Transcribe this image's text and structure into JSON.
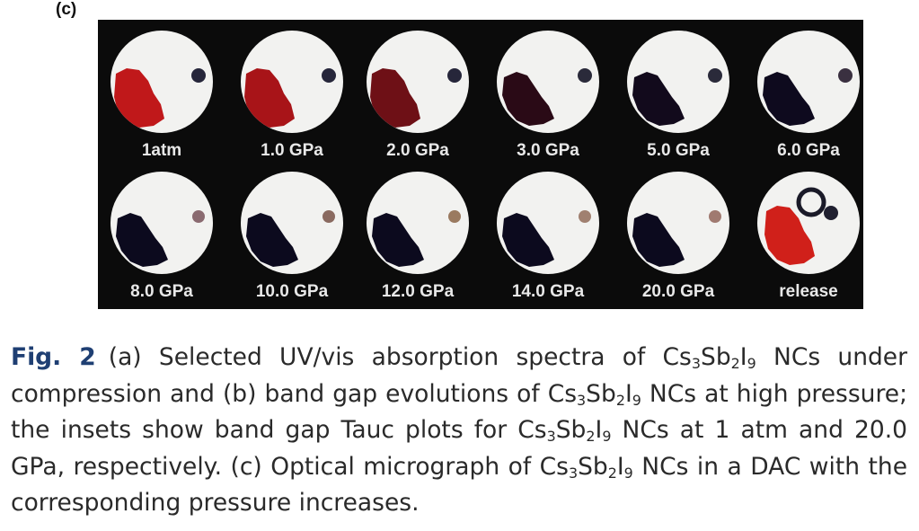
{
  "panel_label": "(c)",
  "micrographs": [
    {
      "label": "1atm",
      "crystal": "#c0181a",
      "dot": "#26263a",
      "stage": 0
    },
    {
      "label": "1.0 GPa",
      "crystal": "#a81418",
      "dot": "#26263a",
      "stage": 1
    },
    {
      "label": "2.0 GPa",
      "crystal": "#6e1016",
      "dot": "#26263a",
      "stage": 2
    },
    {
      "label": "3.0 GPa",
      "crystal": "#2a0a16",
      "dot": "#2a2a3a",
      "stage": 3
    },
    {
      "label": "5.0 GPa",
      "crystal": "#120a1c",
      "dot": "#2a2a3a",
      "stage": 4
    },
    {
      "label": "6.0 GPa",
      "crystal": "#0e0a1e",
      "dot": "#3a3040",
      "stage": 5
    },
    {
      "label": "8.0 GPa",
      "crystal": "#0c0a1e",
      "dot": "#8a6a70",
      "stage": 6
    },
    {
      "label": "10.0 GPa",
      "crystal": "#0c0a1e",
      "dot": "#8a6a60",
      "stage": 7
    },
    {
      "label": "12.0 GPa",
      "crystal": "#0c0a1e",
      "dot": "#9a7a60",
      "stage": 8
    },
    {
      "label": "14.0 GPa",
      "crystal": "#0c0a1e",
      "dot": "#a08070",
      "stage": 9
    },
    {
      "label": "20.0 GPa",
      "crystal": "#0c0a1e",
      "dot": "#a07a70",
      "stage": 10
    },
    {
      "label": "release",
      "crystal": "#d0201a",
      "dot": "#202030",
      "stage": 11
    }
  ],
  "caption": {
    "fig_label": "Fig. 2",
    "p1": "(a) Selected UV/vis absorption spectra of Cs",
    "s1a": "3",
    "p2": "Sb",
    "s1b": "2",
    "p3": "I",
    "s1c": "9",
    "p4": " NCs under compression and (b) band gap evolutions of Cs",
    "s2a": "3",
    "p5": "Sb",
    "s2b": "2",
    "p6": "I",
    "s2c": "9",
    "p7": " NCs at high pressure; the insets show band gap Tauc plots for Cs",
    "s3a": "3",
    "p8": "Sb",
    "s3b": "2",
    "p9": "I",
    "s3c": "9",
    "p10": " NCs at 1 atm and 20.0 GPa, respectively. (c) Optical micrograph of Cs",
    "s4a": "3",
    "p11": "Sb",
    "s4b": "2",
    "p12": "I",
    "s4c": "9",
    "p13": " NCs in a DAC with the corresponding pressure increases."
  }
}
